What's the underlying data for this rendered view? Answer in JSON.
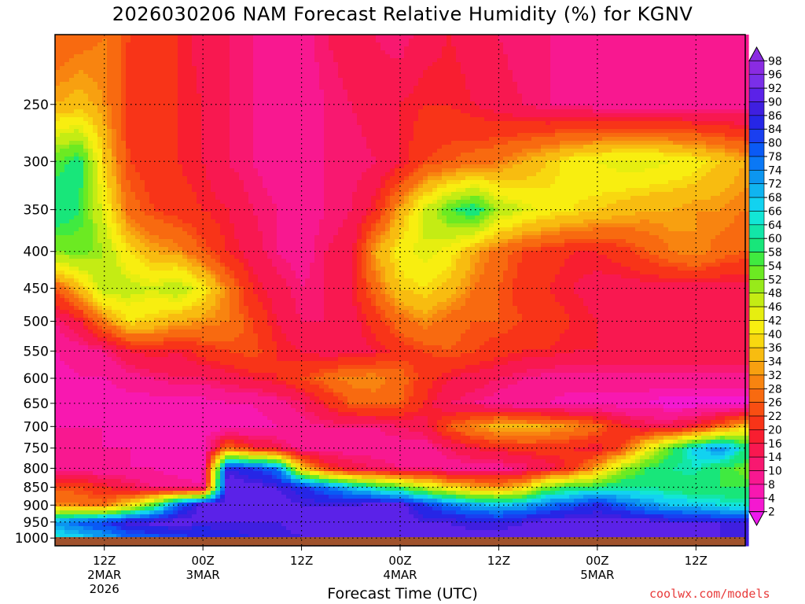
{
  "title": "2026030206 NAM Forecast Relative Humidity (%) for KGNV",
  "xaxis_label": "Forecast Time (UTC)",
  "credit": "coolwx.com/models",
  "colors": {
    "ground": "#a0522d",
    "grid": "#000000"
  },
  "chart_data": {
    "type": "heatmap",
    "title": "2026030206 NAM Forecast Relative Humidity (%) for KGNV",
    "xlabel": "Forecast Time (UTC)",
    "ylabel": "",
    "y_scale": "log-pressure",
    "y_ticks": [
      250,
      300,
      350,
      400,
      450,
      500,
      550,
      600,
      650,
      700,
      750,
      800,
      850,
      900,
      950,
      1000
    ],
    "y_range": [
      200,
      1025
    ],
    "x_range_hours": [
      0,
      84
    ],
    "x_ticks": [
      {
        "hour": 6,
        "lines": [
          "12Z",
          "2MAR",
          "2026"
        ]
      },
      {
        "hour": 18,
        "lines": [
          "00Z",
          "3MAR"
        ]
      },
      {
        "hour": 30,
        "lines": [
          "12Z"
        ]
      },
      {
        "hour": 42,
        "lines": [
          "00Z",
          "4MAR"
        ]
      },
      {
        "hour": 54,
        "lines": [
          "12Z"
        ]
      },
      {
        "hour": 66,
        "lines": [
          "00Z",
          "5MAR"
        ]
      },
      {
        "hour": 78,
        "lines": [
          "12Z"
        ]
      }
    ],
    "colorbar_levels": [
      98,
      96,
      92,
      90,
      86,
      84,
      80,
      78,
      74,
      72,
      68,
      66,
      64,
      60,
      58,
      54,
      52,
      48,
      46,
      42,
      40,
      36,
      34,
      32,
      28,
      26,
      22,
      20,
      16,
      14,
      10,
      8,
      4,
      2
    ],
    "colorbar_colors": [
      "#8a2be2",
      "#7a2fe8",
      "#5b22e8",
      "#3f1fe0",
      "#2626e6",
      "#1a3ff0",
      "#0a5af5",
      "#0a78f5",
      "#0c96f0",
      "#10b4f0",
      "#12d2f0",
      "#12e6d6",
      "#12e6a8",
      "#18e67a",
      "#40ea40",
      "#6cea22",
      "#98ea1a",
      "#c4ec14",
      "#e6ee10",
      "#f8ee10",
      "#f8d810",
      "#f8bc10",
      "#f8a010",
      "#f88410",
      "#f86a10",
      "#f84e12",
      "#f83418",
      "#f81e30",
      "#f81850",
      "#f81870",
      "#f81890",
      "#f818b0",
      "#f418d0",
      "#ee18ee"
    ],
    "field": {
      "hours": [
        0,
        3,
        6,
        9,
        12,
        15,
        18,
        21,
        24,
        27,
        30,
        33,
        36,
        39,
        42,
        45,
        48,
        51,
        54,
        57,
        60,
        63,
        66,
        69,
        72,
        75,
        78,
        81,
        84
      ],
      "levels": [
        200,
        250,
        300,
        350,
        400,
        450,
        500,
        550,
        600,
        650,
        700,
        750,
        800,
        850,
        900,
        950,
        1000
      ],
      "rh": [
        [
          28,
          30,
          32,
          26,
          24,
          22,
          18,
          16,
          14,
          12,
          12,
          16,
          18,
          16,
          14,
          18,
          20,
          18,
          16,
          14,
          14,
          12,
          10,
          10,
          12,
          12,
          14,
          12,
          12
        ],
        [
          36,
          38,
          34,
          24,
          24,
          22,
          20,
          16,
          14,
          12,
          12,
          14,
          16,
          18,
          20,
          22,
          22,
          20,
          18,
          16,
          14,
          14,
          12,
          12,
          12,
          12,
          12,
          12,
          12
        ],
        [
          58,
          62,
          40,
          26,
          24,
          22,
          20,
          16,
          14,
          12,
          12,
          14,
          14,
          16,
          20,
          26,
          28,
          30,
          32,
          36,
          40,
          44,
          46,
          48,
          48,
          46,
          44,
          40,
          36
        ],
        [
          64,
          60,
          46,
          30,
          26,
          24,
          22,
          20,
          16,
          14,
          12,
          14,
          16,
          22,
          36,
          48,
          58,
          64,
          52,
          48,
          44,
          42,
          40,
          38,
          36,
          36,
          34,
          34,
          32
        ],
        [
          54,
          56,
          52,
          42,
          36,
          34,
          28,
          22,
          18,
          14,
          12,
          16,
          18,
          36,
          44,
          48,
          44,
          36,
          30,
          26,
          24,
          22,
          22,
          24,
          28,
          32,
          34,
          30,
          28
        ],
        [
          28,
          38,
          52,
          50,
          48,
          52,
          44,
          32,
          22,
          18,
          14,
          16,
          20,
          30,
          40,
          42,
          38,
          32,
          28,
          24,
          22,
          20,
          18,
          18,
          18,
          18,
          18,
          18,
          18
        ],
        [
          14,
          20,
          32,
          42,
          40,
          36,
          34,
          32,
          26,
          20,
          16,
          16,
          18,
          24,
          30,
          34,
          30,
          28,
          28,
          26,
          24,
          22,
          20,
          18,
          18,
          18,
          18,
          18,
          18
        ],
        [
          10,
          12,
          14,
          20,
          22,
          20,
          24,
          26,
          28,
          22,
          20,
          18,
          18,
          20,
          24,
          26,
          28,
          26,
          24,
          22,
          22,
          20,
          20,
          20,
          20,
          20,
          20,
          20,
          20
        ],
        [
          8,
          10,
          10,
          12,
          14,
          16,
          16,
          18,
          20,
          22,
          26,
          30,
          34,
          34,
          30,
          24,
          20,
          18,
          16,
          14,
          12,
          12,
          12,
          12,
          12,
          12,
          12,
          12,
          12
        ],
        [
          8,
          8,
          8,
          8,
          8,
          8,
          8,
          10,
          10,
          12,
          16,
          22,
          28,
          30,
          28,
          22,
          16,
          14,
          12,
          10,
          10,
          8,
          8,
          8,
          8,
          6,
          6,
          6,
          6
        ],
        [
          10,
          10,
          10,
          8,
          8,
          8,
          8,
          8,
          8,
          10,
          12,
          14,
          14,
          14,
          16,
          18,
          28,
          34,
          38,
          38,
          36,
          34,
          30,
          22,
          18,
          18,
          22,
          30,
          40
        ],
        [
          10,
          10,
          10,
          10,
          8,
          8,
          8,
          30,
          22,
          18,
          12,
          12,
          12,
          12,
          12,
          12,
          16,
          20,
          22,
          24,
          24,
          22,
          20,
          26,
          44,
          58,
          70,
          78,
          64
        ],
        [
          12,
          12,
          10,
          10,
          10,
          8,
          8,
          90,
          86,
          80,
          40,
          24,
          18,
          16,
          14,
          14,
          12,
          12,
          12,
          14,
          18,
          24,
          36,
          52,
          60,
          64,
          66,
          60,
          56
        ],
        [
          26,
          26,
          22,
          18,
          14,
          12,
          10,
          96,
          94,
          92,
          88,
          80,
          72,
          64,
          58,
          50,
          42,
          36,
          34,
          40,
          56,
          60,
          62,
          64,
          64,
          62,
          60,
          60,
          60
        ],
        [
          34,
          32,
          30,
          42,
          58,
          82,
          96,
          96,
          96,
          94,
          92,
          92,
          92,
          94,
          94,
          86,
          80,
          74,
          72,
          74,
          80,
          84,
          88,
          82,
          76,
          72,
          70,
          68,
          66
        ],
        [
          76,
          82,
          86,
          92,
          94,
          94,
          92,
          92,
          92,
          92,
          94,
          94,
          94,
          94,
          94,
          92,
          92,
          90,
          90,
          92,
          94,
          94,
          94,
          94,
          94,
          92,
          92,
          92,
          90
        ],
        [
          66,
          70,
          74,
          80,
          82,
          84,
          86,
          88,
          90,
          90,
          92,
          94,
          94,
          94,
          94,
          94,
          94,
          94,
          94,
          94,
          94,
          94,
          94,
          94,
          94,
          94,
          94,
          92,
          90
        ]
      ]
    }
  }
}
